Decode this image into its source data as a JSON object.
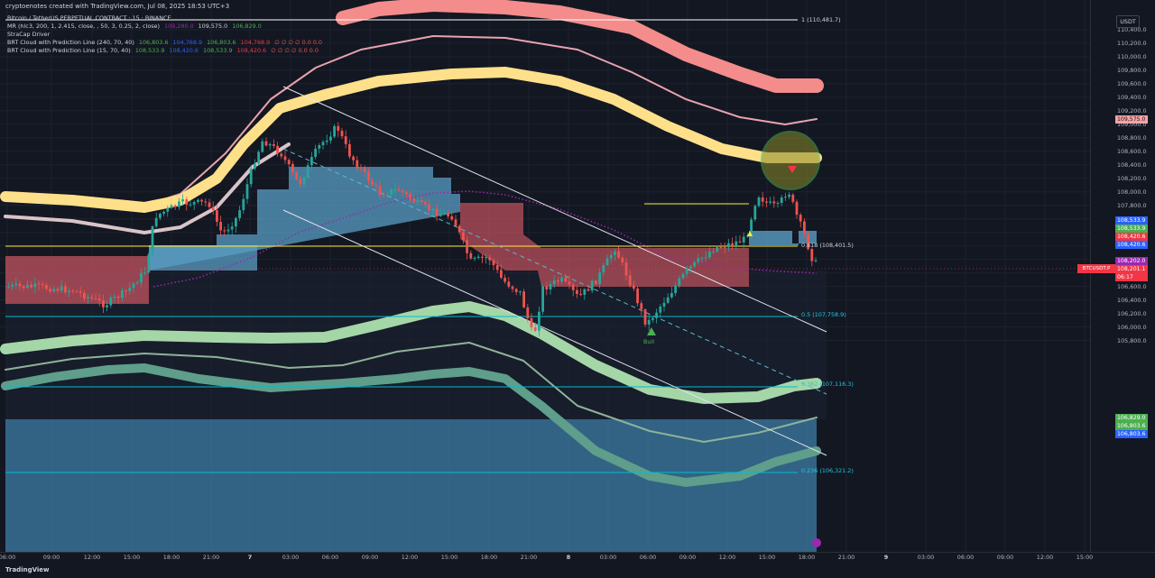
{
  "header": {
    "title": "cryptoenotes created with TradingView.com, Jul 08, 2025 18:53 UTC+3",
    "symbol_line": "Bitcoin / TetherUS PERPETUAL CONTRACT · 15 · BINANCE"
  },
  "legend": [
    {
      "name": "MR (hlc3, 200, 1, 2.415, close, , 50, 3, 0.25, 2, close)",
      "v1": "109,280.0",
      "v2": "109,575.0",
      "v3": "106,829.0",
      "c1": "#9c27b0",
      "c2": "#d1d4dc",
      "c3": "#4caf50"
    },
    {
      "name": "StraCap Driver",
      "v1": "",
      "v2": "",
      "v3": ""
    },
    {
      "name": "BRT Cloud with Prediction Line (240, 70, 40)",
      "v1": "106,803.6",
      "v2": "104,768.9",
      "v3": "106,803.6",
      "v4": "104,768.9",
      "tail": "∅ ∅ ∅ ∅ 0.0 0.0"
    },
    {
      "name": "BRT Cloud with Prediction Line (15, 70, 40)",
      "v1": "108,533.9",
      "v2": "108,420.6",
      "v3": "108,533.9",
      "v4": "108,420.6",
      "tail": "∅ ∅ ∅ ∅ 0.0 0.0"
    }
  ],
  "axis": {
    "currency": "USDT",
    "y_ticks": [
      "110,400.0",
      "110,200.0",
      "110,000.0",
      "109,800.0",
      "109,600.0",
      "109,400.0",
      "109,200.0",
      "109,000.0",
      "108,800.0",
      "108,600.0",
      "108,400.0",
      "108,200.0",
      "108,000.0",
      "107,800.0",
      "107,600.0",
      "107,400.0",
      "107,200.0",
      "107,000.0",
      "106,800.0",
      "106,600.0",
      "106,400.0",
      "106,200.0",
      "106,000.0",
      "105,800.0"
    ],
    "x_ticks": [
      "06:00",
      "09:00",
      "12:00",
      "15:00",
      "18:00",
      "21:00",
      "7",
      "03:00",
      "06:00",
      "09:00",
      "12:00",
      "15:00",
      "18:00",
      "21:00",
      "8",
      "03:00",
      "06:00",
      "09:00",
      "12:00",
      "15:00",
      "18:00",
      "21:00",
      "9",
      "03:00",
      "06:00",
      "09:00",
      "12:00",
      "15:00"
    ],
    "bold_ticks": [
      "7",
      "8",
      "9"
    ]
  },
  "price_badges": [
    {
      "label": "109,575.0",
      "color": "#f8a3a3",
      "text_color": "#131722"
    },
    {
      "label": "108,533.9",
      "color": "#2962ff"
    },
    {
      "label": "108,533.9",
      "color": "#4caf50"
    },
    {
      "label": "108,420.6",
      "color": "#f23645"
    },
    {
      "label": "108,420.6",
      "color": "#2962ff"
    },
    {
      "label": "108,202.0",
      "color": "#9c27b0"
    },
    {
      "label": "108,201.1",
      "color": "#f23645"
    },
    {
      "label": "06:17",
      "color": "#f23645"
    },
    {
      "label": "106,829.0",
      "color": "#4caf50"
    },
    {
      "label": "106,803.6",
      "color": "#4caf50"
    },
    {
      "label": "106,803.6",
      "color": "#2962ff"
    }
  ],
  "symbol_tag": "BTCUSDT.P",
  "fib_levels": [
    {
      "label": "1 (110,481.7)",
      "price": 110481.7,
      "color": "#ffffff"
    },
    {
      "label": "0.618 (108,401.5)",
      "price": 108401.5,
      "color": "#ffeb3b"
    },
    {
      "label": "0.5 (107,758.9)",
      "price": 107758.9,
      "color": "#00bcd4"
    },
    {
      "label": "0.382 (107,116.3)",
      "price": 107116.3,
      "color": "#00bcd4"
    },
    {
      "label": "0.236 (106,321.2)",
      "price": 106321.2,
      "color": "#00bcd4"
    }
  ],
  "bull_label": "Bull",
  "footer": {
    "logo": "TradingView"
  },
  "colors": {
    "bg": "#131722",
    "up": "#26a69a",
    "down": "#ef5350",
    "pink": "#f8a3a3",
    "gold": "#ffe08a",
    "mint": "#a5d6a7",
    "teal": "#5e9e8a",
    "blue_cloud": "#4a90b8",
    "red_cloud": "#c0505a"
  }
}
